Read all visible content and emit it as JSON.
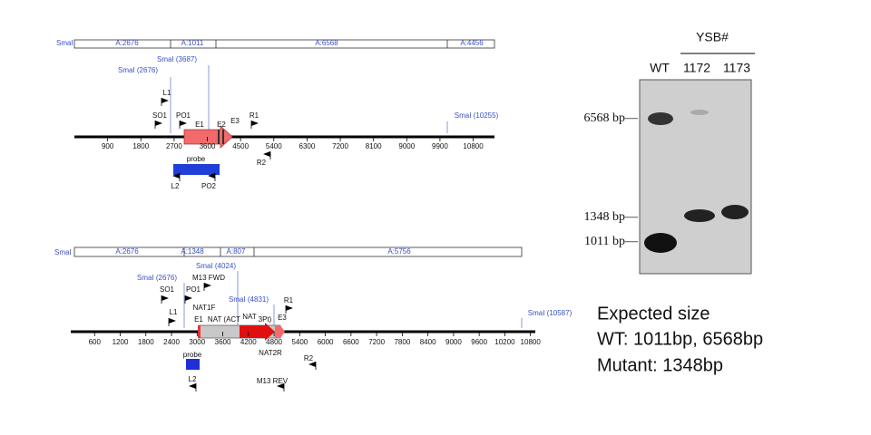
{
  "top_map": {
    "fragments": [
      "SmaI",
      "A:2676",
      "A:1011",
      "A:6568",
      "A:4456"
    ],
    "sites": [
      "SmaI (2676)",
      "SmaI (3687)",
      "SmaI (10255)"
    ],
    "features": [
      "L1",
      "SO1",
      "PO1",
      "E1",
      "E2",
      "E3",
      "R1",
      "R2",
      "probe",
      "L2",
      "PO2"
    ],
    "ticks": [
      900,
      1800,
      2700,
      3600,
      4500,
      5400,
      6300,
      7200,
      8100,
      9000,
      9900,
      10800
    ]
  },
  "bottom_map": {
    "fragments": [
      "SmaI",
      "A:2676",
      "A:1348",
      "A:807",
      "A:5756"
    ],
    "sites": [
      "SmaI (2676)",
      "SmaI (4024)",
      "SmaI (4831)",
      "SmaI (10587)"
    ],
    "features": [
      "SO1",
      "PO1",
      "M13 FWD",
      "L1",
      "NAT1F",
      "E1",
      "NAT (ACT",
      "NAT",
      "3Pt)",
      "E3",
      "R1",
      "NAT2R",
      "M13 REV",
      "R2",
      "probe",
      "L2"
    ],
    "ticks": [
      600,
      1200,
      1800,
      2400,
      3000,
      3600,
      4200,
      4800,
      5400,
      6000,
      6600,
      7200,
      7800,
      8400,
      9000,
      9600,
      10200,
      10800
    ]
  },
  "gel": {
    "header": "YSB#",
    "lanes": [
      "WT",
      "1172",
      "1173"
    ],
    "markers": [
      "6568 bp—",
      "1348 bp—",
      "1011 bp—"
    ]
  },
  "expected": {
    "title": "Expected size",
    "lines": [
      "WT: 1011bp, 6568bp",
      "Mutant: 1348bp"
    ]
  }
}
